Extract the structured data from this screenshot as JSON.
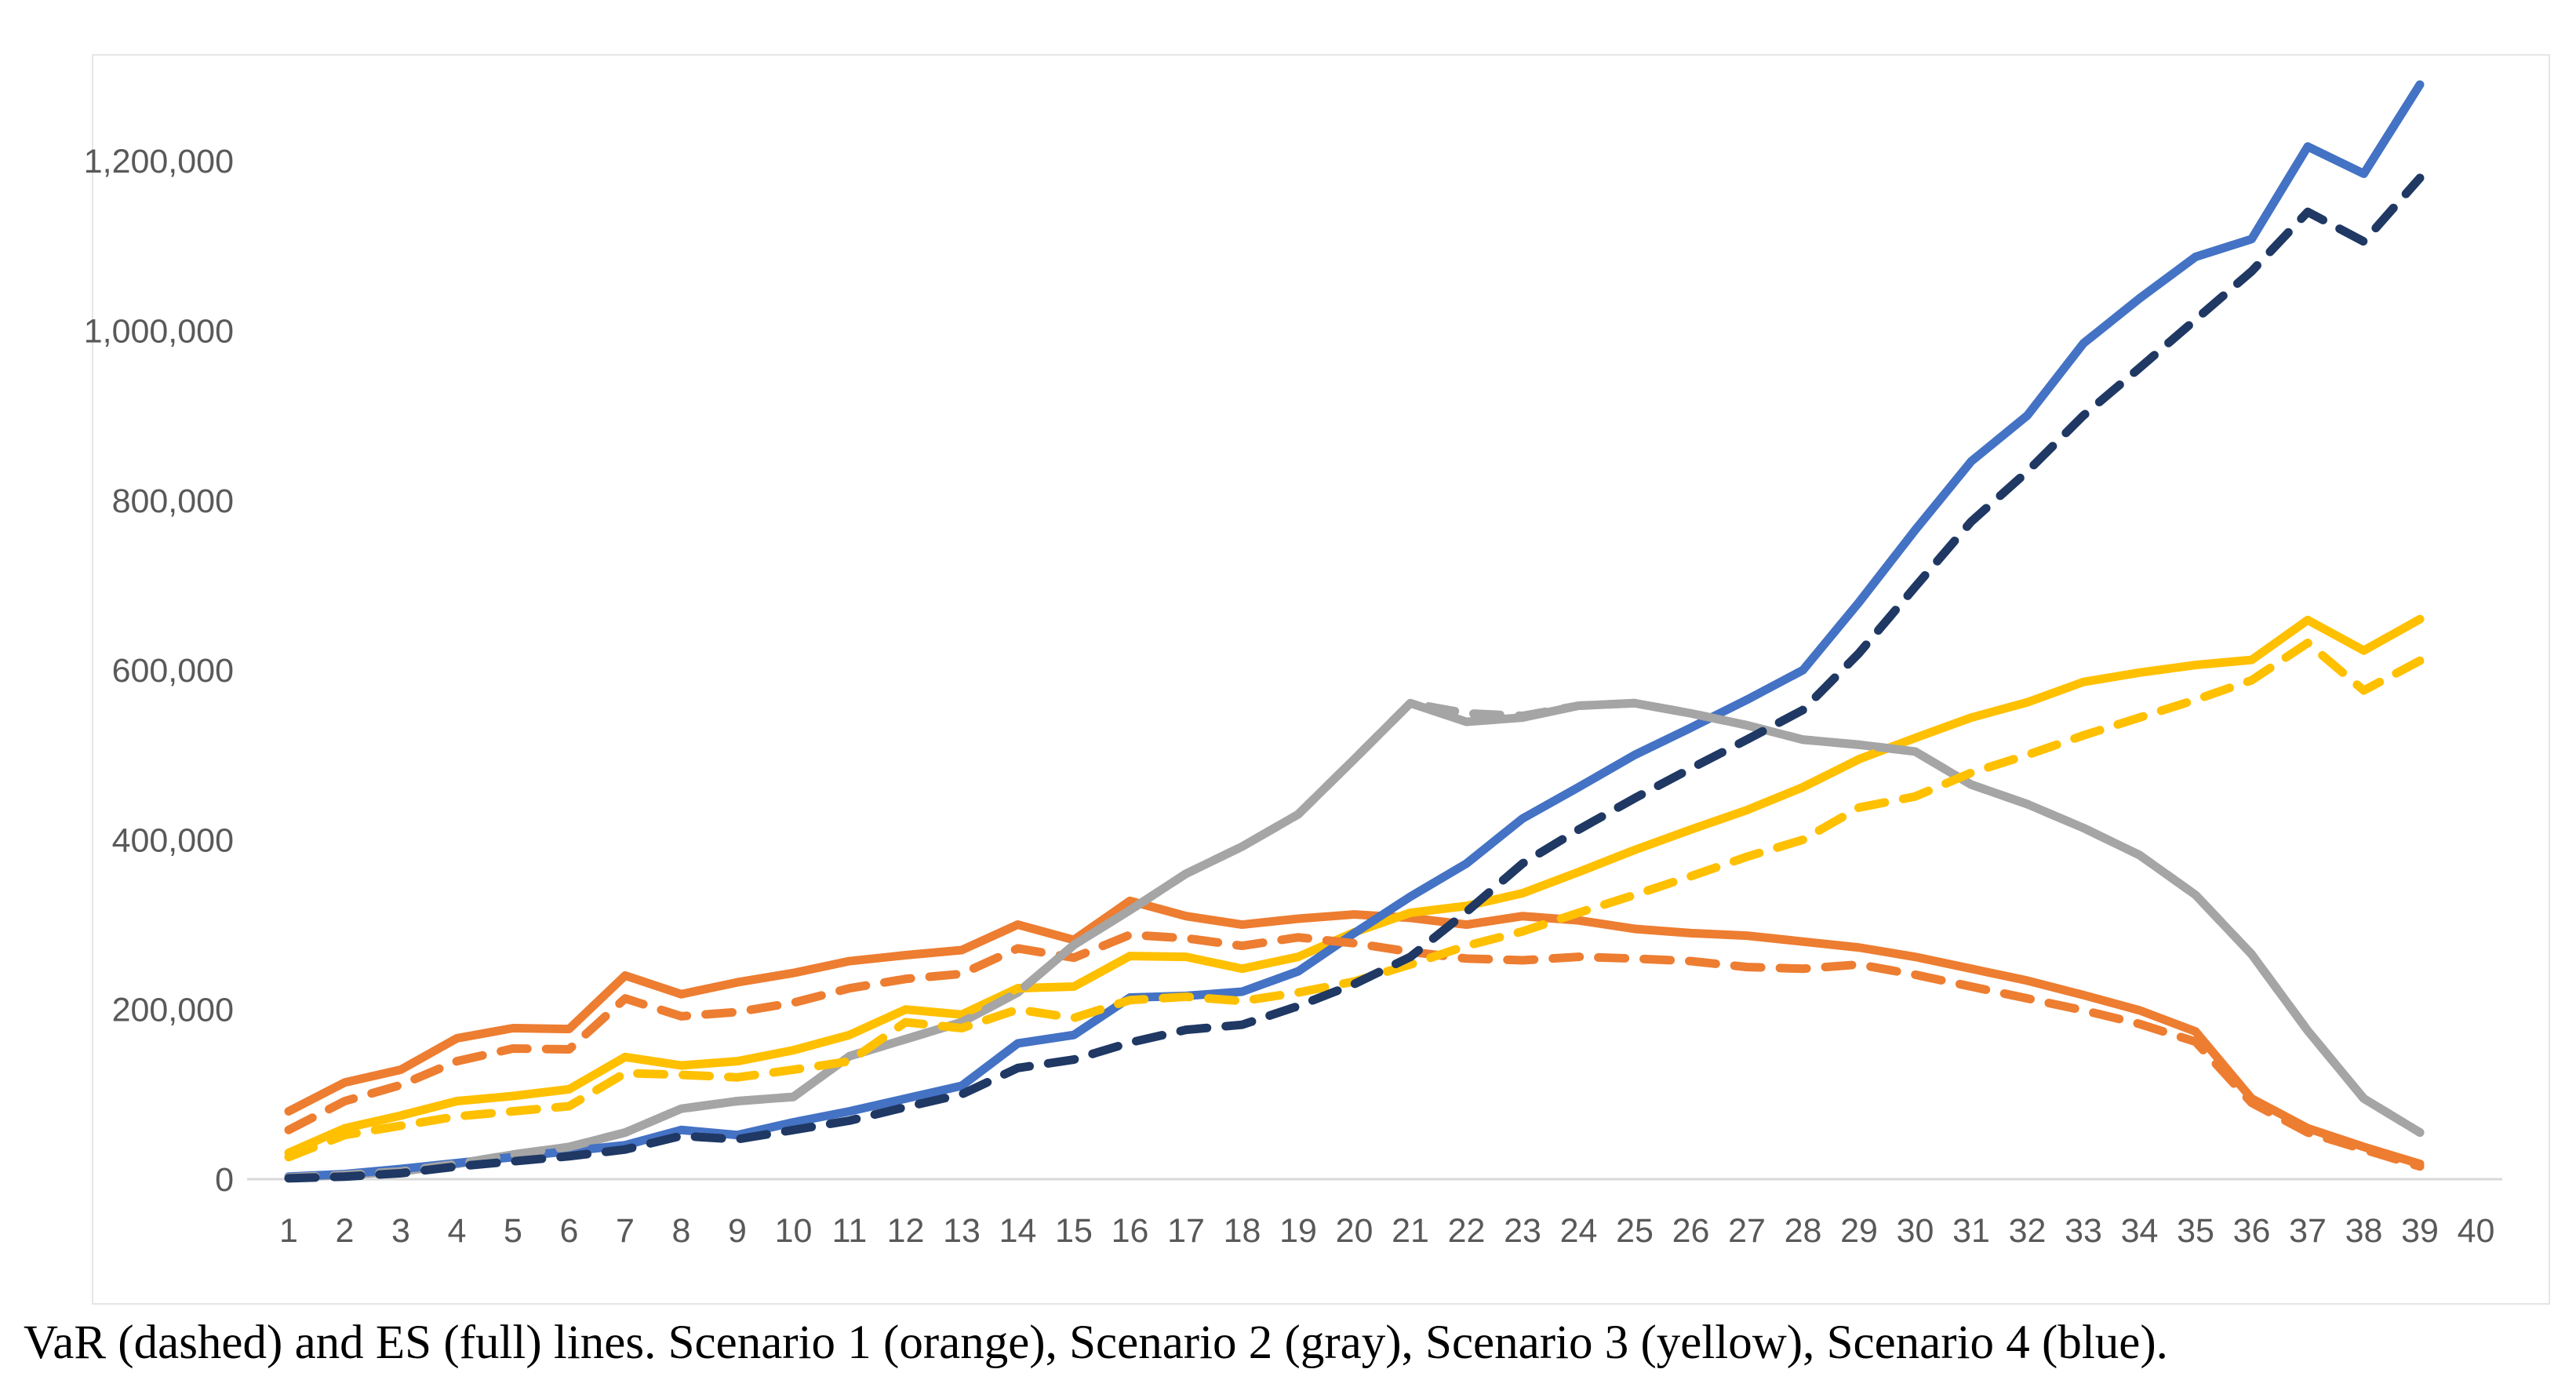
{
  "caption": "VaR (dashed) and ES (full) lines. Scenario 1 (orange), Scenario 2 (gray), Scenario 3 (yellow), Scenario 4 (blue).",
  "colors": {
    "scenario1_orange": "#ED7D31",
    "scenario2_gray": "#A5A5A5",
    "scenario3_yellow": "#FFC000",
    "scenario4_blue": "#4472C4",
    "scenario4_var_navy": "#1F3864",
    "axis_line": "#D9D9D9",
    "tick_label": "#595959",
    "panel_border": "#E6E6E6",
    "background": "#FFFFFF"
  },
  "chart_data": {
    "type": "line",
    "title": "",
    "xlabel": "",
    "ylabel": "",
    "grid": false,
    "legend": "none (described in caption)",
    "x_axis": {
      "tick_labels": [
        "1",
        "2",
        "3",
        "4",
        "5",
        "6",
        "7",
        "8",
        "9",
        "10",
        "11",
        "12",
        "13",
        "14",
        "15",
        "16",
        "17",
        "18",
        "19",
        "20",
        "21",
        "22",
        "23",
        "24",
        "25",
        "26",
        "27",
        "28",
        "29",
        "30",
        "31",
        "32",
        "33",
        "34",
        "35",
        "36",
        "37",
        "38",
        "39",
        "40"
      ],
      "plotted_points": 39
    },
    "y_axis": {
      "range": [
        0,
        1300000
      ],
      "ticks": [
        {
          "value": 0,
          "label": "0"
        },
        {
          "value": 200000,
          "label": "200,000"
        },
        {
          "value": 400000,
          "label": "400,000"
        },
        {
          "value": 600000,
          "label": "600,000"
        },
        {
          "value": 800000,
          "label": "800,000"
        },
        {
          "value": 1000000,
          "label": "1,000,000"
        },
        {
          "value": 1200000,
          "label": "1,200,000"
        }
      ]
    },
    "series": [
      {
        "id": "s1-es",
        "name": "Scenario 1 ES",
        "style": "solid",
        "color_key": "scenario1_orange",
        "values": [
          80000,
          114000,
          129000,
          166000,
          178000,
          177000,
          240000,
          218000,
          232000,
          243000,
          257000,
          264000,
          270000,
          300000,
          282000,
          328000,
          310000,
          300000,
          307000,
          312000,
          308000,
          300000,
          310000,
          305000,
          295000,
          290000,
          287000,
          280000,
          273000,
          262000,
          248000,
          234000,
          217000,
          199000,
          174000,
          95000,
          60000,
          38000,
          18000
        ]
      },
      {
        "id": "s2-es",
        "name": "Scenario 2 ES",
        "style": "solid",
        "color_key": "scenario2_gray",
        "values": [
          2000,
          5000,
          9000,
          18000,
          29000,
          38000,
          55000,
          83000,
          92000,
          97000,
          145000,
          165000,
          185000,
          220000,
          276000,
          317000,
          360000,
          392000,
          430000,
          495000,
          561000,
          539000,
          544000,
          558000,
          561000,
          549000,
          535000,
          518000,
          512000,
          504000,
          465000,
          442000,
          414000,
          382000,
          335000,
          265000,
          175000,
          95000,
          55000
        ]
      },
      {
        "id": "s3-es",
        "name": "Scenario 3 ES",
        "style": "solid",
        "color_key": "scenario3_yellow",
        "values": [
          31000,
          60000,
          75000,
          92000,
          98000,
          106000,
          144000,
          134000,
          139000,
          152000,
          170000,
          200000,
          194000,
          225000,
          227000,
          263000,
          262000,
          248000,
          262000,
          291000,
          314000,
          322000,
          337000,
          362000,
          388000,
          412000,
          435000,
          462000,
          495000,
          520000,
          544000,
          562000,
          586000,
          597000,
          606000,
          612000,
          659000,
          623000,
          660000
        ]
      },
      {
        "id": "s4-es",
        "name": "Scenario 4 ES",
        "style": "solid",
        "color_key": "scenario4_blue",
        "values": [
          3000,
          6000,
          12000,
          19000,
          26000,
          33000,
          40000,
          58000,
          52000,
          67000,
          80000,
          95000,
          110000,
          160000,
          170000,
          214000,
          216000,
          221000,
          245000,
          290000,
          333000,
          372000,
          425000,
          462000,
          500000,
          532000,
          565000,
          600000,
          680000,
          765000,
          846000,
          900000,
          985000,
          1038000,
          1087000,
          1108000,
          1217000,
          1185000,
          1290000
        ]
      },
      {
        "id": "s1-var",
        "name": "Scenario 1 VaR",
        "style": "dashed",
        "color_key": "scenario1_orange",
        "values": [
          58000,
          92000,
          111000,
          139000,
          154000,
          153000,
          213000,
          192000,
          197000,
          208000,
          225000,
          236000,
          242000,
          272000,
          261000,
          288000,
          284000,
          275000,
          285000,
          278000,
          268000,
          260000,
          258000,
          262000,
          260000,
          257000,
          250000,
          248000,
          253000,
          241000,
          227000,
          213000,
          199000,
          183000,
          162000,
          90000,
          55000,
          35000,
          15000
        ]
      },
      {
        "id": "s2-var",
        "name": "Scenario 2 VaR",
        "style": "dashed",
        "color_key": "scenario2_gray",
        "values": [
          2000,
          5000,
          9000,
          18000,
          29000,
          38000,
          55000,
          83000,
          92000,
          97000,
          145000,
          165000,
          185000,
          220000,
          276000,
          317000,
          360000,
          392000,
          430000,
          495000,
          561000,
          549000,
          546000,
          558000,
          561000,
          549000,
          535000,
          518000,
          512000,
          504000,
          465000,
          442000,
          414000,
          382000,
          335000,
          265000,
          175000,
          95000,
          55000
        ]
      },
      {
        "id": "s3-var",
        "name": "Scenario 3 VaR",
        "style": "dashed",
        "color_key": "scenario3_yellow",
        "values": [
          26000,
          52000,
          63000,
          74000,
          80000,
          86000,
          125000,
          123000,
          120000,
          129000,
          139000,
          185000,
          178000,
          200000,
          190000,
          211000,
          215000,
          210000,
          220000,
          233000,
          253000,
          275000,
          292000,
          314000,
          335000,
          357000,
          380000,
          400000,
          438000,
          451000,
          479000,
          500000,
          523000,
          544000,
          565000,
          588000,
          632000,
          576000,
          611000
        ]
      },
      {
        "id": "s4-var",
        "name": "Scenario 4 VaR",
        "style": "dashed",
        "color_key": "scenario4_var_navy",
        "values": [
          1000,
          3000,
          7000,
          15000,
          21000,
          27000,
          35000,
          51000,
          47000,
          58000,
          69000,
          85000,
          100000,
          131000,
          141000,
          161000,
          176000,
          182000,
          204000,
          230000,
          262000,
          315000,
          372000,
          412000,
          449000,
          484000,
          518000,
          553000,
          620000,
          698000,
          775000,
          834000,
          900000,
          956000,
          1013000,
          1070000,
          1140000,
          1105000,
          1180000
        ]
      }
    ]
  }
}
